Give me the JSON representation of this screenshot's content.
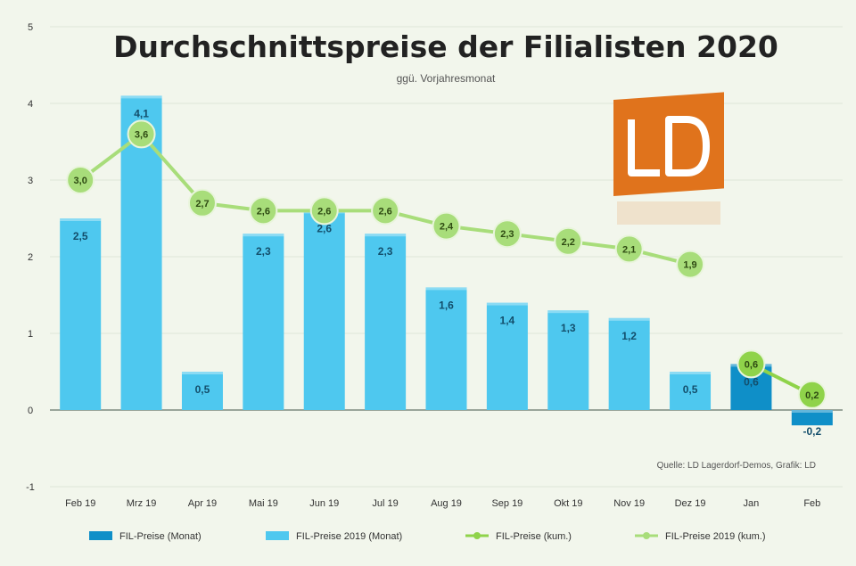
{
  "chart_data": {
    "type": "bar",
    "title": "Durchschnittspreise der Filialisten 2020",
    "subtitle": "ggü. Vorjahresmonat",
    "source": "Quelle: LD Lagerdorf-Demos, Grafik: LD",
    "logo_text": "LD",
    "ylim": [
      -1,
      5
    ],
    "yticks": [
      "5",
      "4",
      "3",
      "2",
      "1",
      "0",
      "-1"
    ],
    "grid": true,
    "legend_position": "bottom",
    "categories": [
      "Feb 19",
      "Mrz 19",
      "Apr 19",
      "Mai 19",
      "Jun 19",
      "Jul 19",
      "Aug 19",
      "Sep 19",
      "Okt 19",
      "Nov 19",
      "Dez 19",
      "Jan",
      "Feb"
    ],
    "series": [
      {
        "name": "FIL-Preise (Monat)",
        "kind": "bar",
        "color": "#0f8fc8",
        "values": [
          null,
          null,
          null,
          null,
          null,
          null,
          null,
          null,
          null,
          null,
          null,
          0.6,
          -0.2
        ]
      },
      {
        "name": "FIL-Preise 2019 (Monat)",
        "kind": "bar",
        "color": "#4ec8ef",
        "values": [
          2.5,
          4.1,
          0.5,
          2.3,
          2.6,
          2.3,
          1.6,
          1.4,
          1.3,
          1.2,
          0.5,
          null,
          null
        ]
      },
      {
        "name": "FIL-Preise (kum.)",
        "kind": "line",
        "color": "#8fd34a",
        "values": [
          null,
          null,
          null,
          null,
          null,
          null,
          null,
          null,
          null,
          null,
          null,
          0.6,
          0.2
        ]
      },
      {
        "name": "FIL-Preise 2019 (kum.)",
        "kind": "line",
        "color": "#a8dd7a",
        "values": [
          3.0,
          3.6,
          2.7,
          2.6,
          2.6,
          2.6,
          2.4,
          2.3,
          2.2,
          2.1,
          1.9,
          null,
          null
        ]
      }
    ],
    "bar_labels": [
      "2,5",
      "4,1",
      "0,5",
      "2,3",
      "2,6",
      "2,3",
      "1,6",
      "1,4",
      "1,3",
      "1,2",
      "0,5",
      "0,6",
      "-0,2"
    ],
    "line_labels_2019": [
      "3,0",
      "3,6",
      "2,7",
      "2,6",
      "2,6",
      "2,6",
      "2,4",
      "2,3",
      "2,2",
      "2,1",
      "1,9"
    ],
    "line_labels_2020": [
      "0,6",
      "0,2"
    ]
  }
}
